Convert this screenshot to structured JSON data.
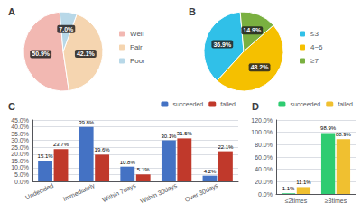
{
  "chart_data": [
    {
      "type": "pie",
      "title": "A",
      "categories": [
        "Well",
        "Fair",
        "Poor"
      ],
      "values": [
        50.9,
        42.1,
        7.0
      ],
      "value_labels": [
        "50.9%",
        "42.1%",
        "7.0%"
      ],
      "colors": [
        "#f2b8b2",
        "#f5d5b0",
        "#b8d8e8"
      ],
      "data_labels": true,
      "legend": "right"
    },
    {
      "type": "pie",
      "title": "B",
      "categories": [
        "≤3",
        "4~6",
        "≥7"
      ],
      "values": [
        36.9,
        48.2,
        14.9
      ],
      "value_labels": [
        "36.9%",
        "48.2%",
        "14.9%"
      ],
      "colors": [
        "#30c0e8",
        "#f5c000",
        "#7ab040"
      ],
      "data_labels": true,
      "legend": "right"
    },
    {
      "type": "bar",
      "title": "C",
      "categories": [
        "Undecided",
        "Immediately",
        "Within 7days",
        "Within 30days",
        "Over 30days"
      ],
      "series": [
        {
          "name": "succeeded",
          "color": "#4472c4",
          "values": [
            15.1,
            39.8,
            10.8,
            30.1,
            4.2
          ],
          "value_labels": [
            "15.1%",
            "39.8%",
            "10.8%",
            "30.1%",
            "4.2%"
          ]
        },
        {
          "name": "failed",
          "color": "#c0392b",
          "values": [
            23.7,
            19.6,
            5.1,
            31.5,
            22.1
          ],
          "value_labels": [
            "23.7%",
            "19.6%",
            "5.1%",
            "31.5%",
            "22.1%"
          ]
        }
      ],
      "ylim": [
        0,
        45
      ],
      "yticks": [
        {
          "value": 0,
          "label": "0.0%"
        },
        {
          "value": 5,
          "label": "5.0%"
        },
        {
          "value": 10,
          "label": "10.0%"
        },
        {
          "value": 15,
          "label": "15.0%"
        },
        {
          "value": 20,
          "label": "20.0%"
        },
        {
          "value": 25,
          "label": "25.0%"
        },
        {
          "value": 30,
          "label": "30.0%"
        },
        {
          "value": 35,
          "label": "35.0%"
        },
        {
          "value": 40,
          "label": "40.0%"
        },
        {
          "value": 45,
          "label": "45.0%"
        }
      ],
      "grid": true,
      "legend": "upper right",
      "data_labels": true
    },
    {
      "type": "bar",
      "title": "D",
      "categories": [
        "≤2times",
        "≥3times"
      ],
      "series": [
        {
          "name": "succeeded",
          "color": "#2ecc71",
          "values": [
            1.1,
            98.9
          ],
          "value_labels": [
            "1.1%",
            "98.9%"
          ]
        },
        {
          "name": "failed",
          "color": "#f0c030",
          "values": [
            11.1,
            88.9
          ],
          "value_labels": [
            "11.1%",
            "88.9%"
          ]
        }
      ],
      "ylim": [
        0,
        120
      ],
      "yticks": [
        {
          "value": 0,
          "label": "0.0%"
        },
        {
          "value": 20,
          "label": "20.0%"
        },
        {
          "value": 40,
          "label": "40.0%"
        },
        {
          "value": 60,
          "label": "60.0%"
        },
        {
          "value": 80,
          "label": "80.0%"
        },
        {
          "value": 100,
          "label": "100.0%"
        },
        {
          "value": 120,
          "label": "120.0%"
        }
      ],
      "grid": true,
      "legend": "upper right",
      "data_labels": true
    }
  ]
}
